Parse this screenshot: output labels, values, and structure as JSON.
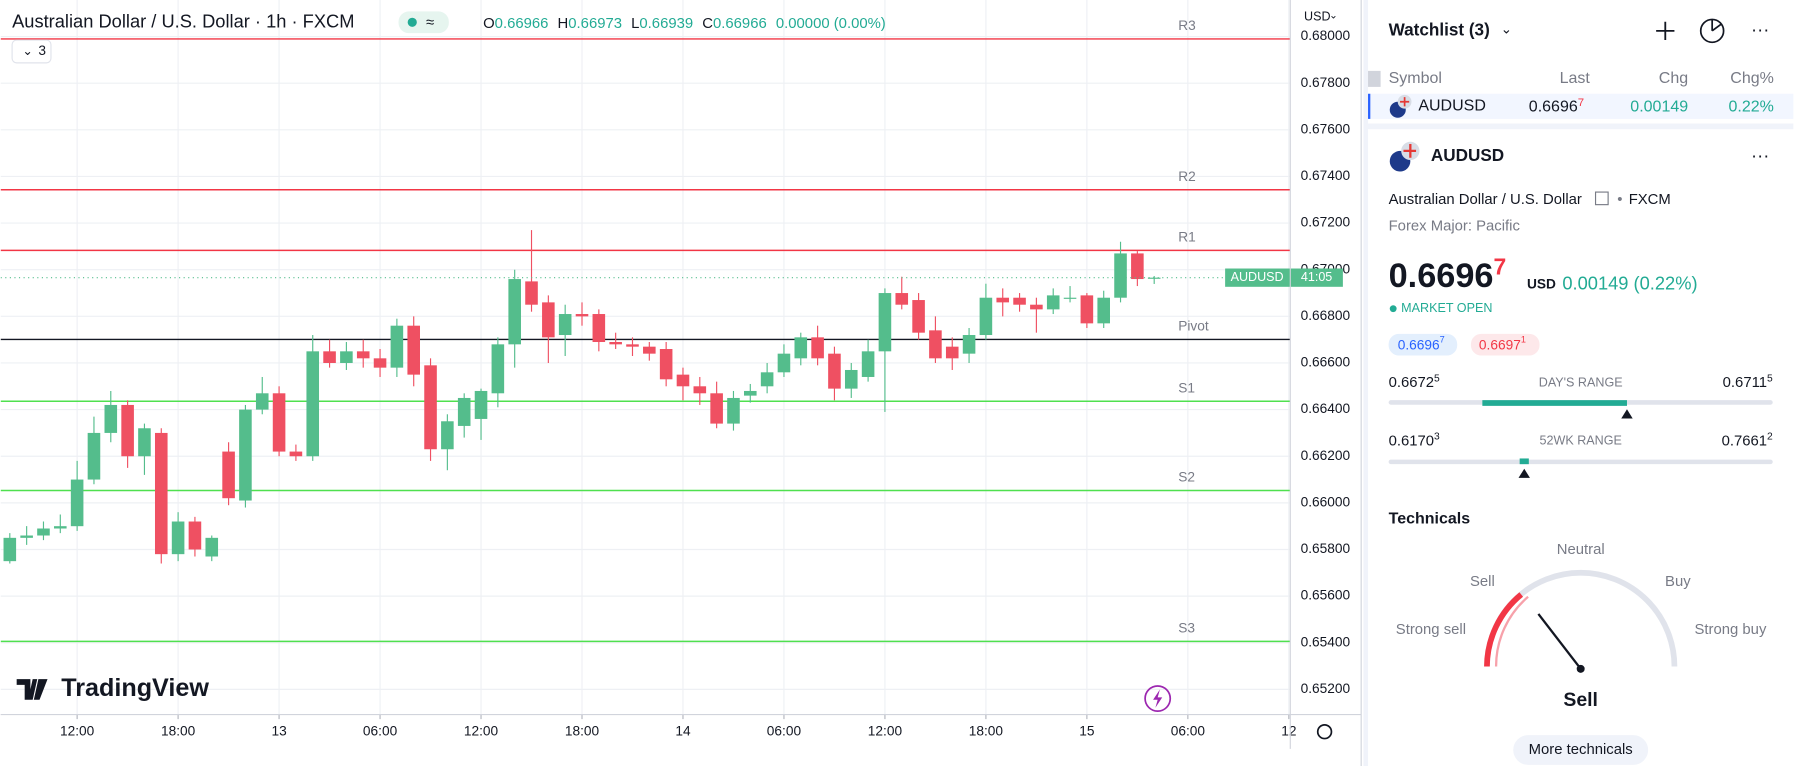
{
  "header": {
    "title": "Australian Dollar / U.S. Dollar · 1h · FXCM",
    "ohlc": [
      {
        "key": "O",
        "value": "0.66966"
      },
      {
        "key": "H",
        "value": "0.66973"
      },
      {
        "key": "L",
        "value": "0.66939"
      },
      {
        "key": "C",
        "value": "0.66966"
      }
    ],
    "change": "0.00000 (0.00%)",
    "indicator_count": "3",
    "currency": "USD",
    "logo": "TradingView"
  },
  "chart_data": {
    "type": "candlestick",
    "up_color": "#54bd8c",
    "down_color": "#ef5062",
    "grid": true,
    "categories": [
      null,
      null,
      null,
      null,
      "12:00",
      null,
      null,
      null,
      null,
      null,
      "18:00",
      null,
      null,
      null,
      null,
      null,
      "13",
      null,
      null,
      null,
      null,
      null,
      "06:00",
      null,
      null,
      null,
      null,
      null,
      "12:00",
      null,
      null,
      null,
      null,
      null,
      "18:00",
      null,
      null,
      null,
      null,
      null,
      "14",
      null,
      null,
      null,
      null,
      null,
      "06:00",
      null,
      null,
      null,
      null,
      null,
      "12:00",
      null,
      null,
      null,
      null,
      null,
      "18:00",
      null,
      null,
      null,
      null,
      null,
      "15",
      null,
      null,
      null,
      null,
      null,
      "06:00",
      null,
      null,
      null,
      null,
      null,
      "12"
    ],
    "open": [
      0.6575,
      0.6585,
      0.6586,
      0.6589,
      0.659,
      0.661,
      0.663,
      0.6642,
      0.662,
      0.663,
      0.6578,
      0.6592,
      0.6577,
      0.6622,
      0.6601,
      0.664,
      0.6647,
      0.6622,
      0.662,
      0.6665,
      0.666,
      0.6665,
      0.6662,
      0.6658,
      0.6676,
      0.6659,
      0.6623,
      0.6633,
      0.6636,
      0.6647,
      0.6668,
      0.6695,
      0.6686,
      0.6672,
      0.6681,
      0.6681,
      0.6669,
      0.6668,
      0.6667,
      0.6666,
      0.6655,
      0.665,
      0.6647,
      0.6634,
      0.6646,
      0.665,
      0.6656,
      0.6662,
      0.6671,
      0.6664,
      0.6649,
      0.6654,
      0.6665,
      0.669,
      0.6687,
      0.6674,
      0.6667,
      0.6664,
      0.6672,
      0.6688,
      0.6688,
      0.6685,
      0.6683,
      0.6688,
      0.6689,
      0.6677,
      0.6688,
      0.6707,
      0.66966,
      null,
      null,
      null,
      null,
      null,
      null,
      null,
      null
    ],
    "high": [
      0.6587,
      0.659,
      0.6592,
      0.6595,
      0.6618,
      0.6637,
      0.6648,
      0.6644,
      0.6634,
      0.6632,
      0.6596,
      0.6594,
      0.6586,
      0.6626,
      0.6642,
      0.6654,
      0.665,
      0.6625,
      0.6672,
      0.667,
      0.6669,
      0.667,
      0.6666,
      0.6679,
      0.668,
      0.6662,
      0.6638,
      0.6647,
      0.6649,
      0.6671,
      0.67,
      0.6717,
      0.6689,
      0.6685,
      0.6686,
      0.6683,
      0.6673,
      0.6671,
      0.6669,
      0.6669,
      0.6658,
      0.6654,
      0.6652,
      0.6648,
      0.6651,
      0.666,
      0.6668,
      0.6673,
      0.6676,
      0.6667,
      0.666,
      0.667,
      0.6692,
      0.6697,
      0.669,
      0.668,
      0.6671,
      0.6675,
      0.6694,
      0.6692,
      0.669,
      0.6688,
      0.6692,
      0.6693,
      0.669,
      0.6691,
      0.6712,
      0.6708,
      0.66973,
      null,
      null,
      null,
      null,
      null,
      null,
      null,
      null
    ],
    "low": [
      0.6574,
      0.6582,
      0.6584,
      0.6587,
      0.6588,
      0.6608,
      0.6626,
      0.6615,
      0.6612,
      0.6574,
      0.6575,
      0.6577,
      0.6575,
      0.6599,
      0.6598,
      0.6638,
      0.662,
      0.6618,
      0.6618,
      0.6658,
      0.6657,
      0.6658,
      0.6654,
      0.6654,
      0.665,
      0.6618,
      0.6614,
      0.6628,
      0.6627,
      0.6641,
      0.6658,
      0.6682,
      0.666,
      0.6663,
      0.6676,
      0.6665,
      0.6666,
      0.6663,
      0.6661,
      0.665,
      0.6644,
      0.6642,
      0.6632,
      0.6631,
      0.6643,
      0.6647,
      0.6654,
      0.6659,
      0.6659,
      0.6644,
      0.6645,
      0.6652,
      0.6639,
      0.6683,
      0.667,
      0.666,
      0.6657,
      0.666,
      0.667,
      0.668,
      0.6682,
      0.6673,
      0.6681,
      0.6686,
      0.6675,
      0.6675,
      0.6686,
      0.6693,
      0.66939,
      null,
      null,
      null,
      null,
      null,
      null,
      null,
      null
    ],
    "close": [
      0.6585,
      0.6586,
      0.6589,
      0.659,
      0.661,
      0.663,
      0.6642,
      0.662,
      0.6632,
      0.6578,
      0.6592,
      0.658,
      0.6585,
      0.6602,
      0.664,
      0.6647,
      0.6622,
      0.662,
      0.6665,
      0.666,
      0.6665,
      0.6662,
      0.6658,
      0.6676,
      0.6655,
      0.6623,
      0.6635,
      0.6645,
      0.6648,
      0.6668,
      0.6696,
      0.6685,
      0.6671,
      0.6681,
      0.668,
      0.6669,
      0.6668,
      0.6667,
      0.6664,
      0.6653,
      0.665,
      0.6647,
      0.6634,
      0.6645,
      0.6648,
      0.6656,
      0.6664,
      0.6671,
      0.6662,
      0.6649,
      0.6657,
      0.6665,
      0.669,
      0.6685,
      0.6673,
      0.6662,
      0.6662,
      0.6672,
      0.6688,
      0.6686,
      0.6685,
      0.6683,
      0.6689,
      0.6688,
      0.6677,
      0.6688,
      0.6707,
      0.6696,
      0.66966,
      null,
      null,
      null,
      null,
      null,
      null,
      null,
      null
    ],
    "ylim": [
      0.65092,
      0.68157
    ],
    "yticks": [
      {
        "value": 0.652,
        "label": "0.65200"
      },
      {
        "value": 0.654,
        "label": "0.65400"
      },
      {
        "value": 0.656,
        "label": "0.65600"
      },
      {
        "value": 0.658,
        "label": "0.65800"
      },
      {
        "value": 0.66,
        "label": "0.66000"
      },
      {
        "value": 0.662,
        "label": "0.66200"
      },
      {
        "value": 0.664,
        "label": "0.66400"
      },
      {
        "value": 0.666,
        "label": "0.66600"
      },
      {
        "value": 0.668,
        "label": "0.66800"
      },
      {
        "value": 0.67,
        "label": "0.67000"
      },
      {
        "value": 0.672,
        "label": "0.67200"
      },
      {
        "value": 0.674,
        "label": "0.67400"
      },
      {
        "value": 0.676,
        "label": "0.67600"
      },
      {
        "value": 0.678,
        "label": "0.67800"
      },
      {
        "value": 0.68,
        "label": "0.68000"
      }
    ],
    "lines": [
      {
        "label": "R3",
        "value": 0.6799,
        "color": "#f23645"
      },
      {
        "label": "R2",
        "value": 0.67343,
        "color": "#f23645"
      },
      {
        "label": "R1",
        "value": 0.67083,
        "color": "#f23645"
      },
      {
        "label": "Pivot",
        "value": 0.66701,
        "color": "#131722"
      },
      {
        "label": "S1",
        "value": 0.66436,
        "color": "#4fe04f"
      },
      {
        "label": "S2",
        "value": 0.66053,
        "color": "#4fe04f"
      },
      {
        "label": "S3",
        "value": 0.65406,
        "color": "#4fe04f"
      }
    ],
    "last_tag": {
      "symbol": "AUDUSD",
      "countdown": "41:05"
    }
  },
  "watchlist": {
    "title": "Watchlist (3)",
    "columns": [
      "Symbol",
      "Last",
      "Chg",
      "Chg%"
    ],
    "row": {
      "symbol": "AUDUSD",
      "last": {
        "main": "0.6696",
        "sup": "7"
      },
      "chg": "0.00149",
      "chg_pct": "0.22%"
    }
  },
  "details": {
    "symbol": "AUDUSD",
    "name": "Australian Dollar / U.S. Dollar",
    "exchange": "FXCM",
    "category": "Forex Major: Pacific",
    "price": {
      "main": "0.6696",
      "sup": "7"
    },
    "currency": "USD",
    "change": "0.00149 (0.22%)",
    "status": "MARKET OPEN",
    "bid": {
      "main": "0.6696",
      "sup": "7"
    },
    "ask": {
      "main": "0.6697",
      "sup": "1"
    },
    "days_range": {
      "label": "DAY'S RANGE",
      "low": {
        "main": "0.6672",
        "sup": "5"
      },
      "high": {
        "main": "0.6711",
        "sup": "5"
      }
    },
    "wk52_range": {
      "label": "52WK RANGE",
      "low": {
        "main": "0.6170",
        "sup": "3"
      },
      "high": {
        "main": "0.7661",
        "sup": "2"
      }
    }
  },
  "technicals": {
    "title": "Technicals",
    "labels": [
      "Strong sell",
      "Sell",
      "Neutral",
      "Buy",
      "Strong buy"
    ],
    "verdict": "Sell",
    "button": "More technicals"
  }
}
